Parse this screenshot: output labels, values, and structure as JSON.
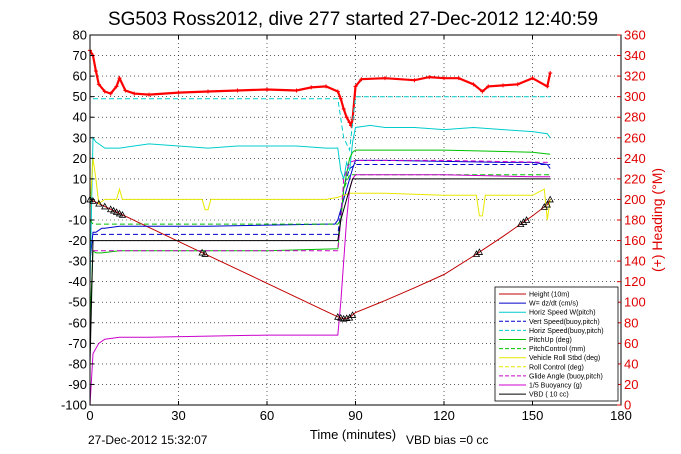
{
  "chart_data": {
    "type": "line",
    "title": "SG503 Ross2012, dive 277 started 27-Dec-2012 12:40:59",
    "xlabel": "Time (minutes)",
    "ylabel_right": "(+) Heading (°M)",
    "xlim": [
      0,
      180
    ],
    "ylim": [
      -100,
      80
    ],
    "ylim_right": [
      0,
      360
    ],
    "x_ticks": [
      "0",
      "30",
      "60",
      "90",
      "120",
      "150",
      "180"
    ],
    "y_ticks": [
      "-100",
      "-90",
      "-80",
      "-70",
      "-60",
      "-50",
      "-40",
      "-30",
      "-20",
      "-10",
      "0",
      "10",
      "20",
      "30",
      "40",
      "50",
      "60",
      "70",
      "80"
    ],
    "y_right_ticks": [
      "0",
      "20",
      "40",
      "60",
      "80",
      "100",
      "120",
      "140",
      "160",
      "180",
      "200",
      "220",
      "240",
      "260",
      "280",
      "300",
      "320",
      "340",
      "360"
    ],
    "grid": true,
    "legend_position": "bottom-right",
    "footer_left": "27-Dec-2012 15:32:07",
    "footer_right": "VBD bias =0 cc",
    "colors": {
      "heading": "#ff0000",
      "height": "#c00000",
      "w_dzdt": "#0000cc",
      "horiz_speed": "#00cccc",
      "pitch": "#00c000",
      "roll": "#e8e800",
      "glide_angle": "#cc00cc",
      "vbd": "#000000"
    },
    "legend": [
      {
        "label": "Height (10m)",
        "color": "#c00000",
        "dash": "solid"
      },
      {
        "label": "W= dz/dt (cm/s)",
        "color": "#0000cc",
        "dash": "solid"
      },
      {
        "label": "Horiz Speed W(pitch)",
        "color": "#00cccc",
        "dash": "solid"
      },
      {
        "label": "Vert Speed(buoy,pitch)",
        "color": "#0000cc",
        "dash": "dashed"
      },
      {
        "label": "Horiz Speed(buoy,pitch)",
        "color": "#00cccc",
        "dash": "dashed"
      },
      {
        "label": "PitchUp (deg)",
        "color": "#00c000",
        "dash": "solid"
      },
      {
        "label": "PitchControl (mm)",
        "color": "#00c000",
        "dash": "dashed"
      },
      {
        "label": "Vehicle Roll Stbd (deg)",
        "color": "#e8e800",
        "dash": "solid"
      },
      {
        "label": "Roll Control (deg)",
        "color": "#e8e800",
        "dash": "dashed"
      },
      {
        "label": "Glide Angle (buoy,pitch)",
        "color": "#cc00cc",
        "dash": "dashed"
      },
      {
        "label": "1/5 Buoyancy (g)",
        "color": "#cc00cc",
        "dash": "solid"
      },
      {
        "label": "VBD ( 10 cc)",
        "color": "#000000",
        "dash": "solid"
      }
    ],
    "series": [
      {
        "key": "heading",
        "axis": "right",
        "color": "#ff0000",
        "width": 2.2,
        "x": [
          0,
          1,
          2,
          3,
          5,
          7,
          9,
          10,
          12,
          15,
          20,
          30,
          40,
          50,
          60,
          70,
          75,
          80,
          84,
          85,
          86,
          87,
          88,
          88.5,
          89,
          90,
          92,
          100,
          110,
          115,
          120,
          125,
          130,
          133,
          135,
          140,
          145,
          150,
          155,
          156
        ],
        "y": [
          345,
          340,
          325,
          312,
          305,
          303,
          310,
          318,
          306,
          303,
          302,
          304,
          305,
          306,
          307,
          306,
          309,
          310,
          305,
          298,
          288,
          280,
          275,
          272,
          278,
          310,
          317,
          318,
          316,
          319,
          318,
          318,
          312,
          305,
          310,
          311,
          312,
          318,
          310,
          323
        ]
      },
      {
        "key": "height",
        "color": "#c00000",
        "width": 1,
        "x": [
          0,
          5,
          10,
          15,
          20,
          25,
          30,
          40,
          50,
          60,
          70,
          80,
          84,
          86,
          88,
          90,
          100,
          110,
          120,
          130,
          140,
          150,
          155,
          156
        ],
        "y": [
          0,
          -3.4,
          -6.8,
          -10.2,
          -13.6,
          -17,
          -20.4,
          -27.2,
          -34,
          -40.8,
          -47.6,
          -54.4,
          -57.1,
          -58,
          -57.5,
          -55,
          -49.2,
          -43,
          -36.5,
          -27.5,
          -18,
          -8,
          -2.5,
          0
        ]
      },
      {
        "key": "w_measured",
        "color": "#0000cc",
        "width": 1,
        "x": [
          0,
          1,
          2,
          3,
          4,
          5,
          10,
          20,
          40,
          60,
          80,
          83,
          84,
          85,
          86,
          87,
          88,
          89,
          90,
          92,
          95,
          100,
          120,
          140,
          150,
          155,
          156
        ],
        "y": [
          -30,
          -16,
          -16,
          -15,
          -14,
          -14,
          -13,
          -13,
          -13,
          -12.5,
          -12,
          -12,
          -10,
          -5,
          0,
          5,
          10,
          15,
          19,
          19,
          19,
          19,
          18.5,
          18,
          18,
          17,
          15
        ]
      },
      {
        "key": "w_model",
        "color": "#0000cc",
        "dash": "5,3",
        "width": 1,
        "x": [
          1,
          20,
          40,
          60,
          84,
          85,
          86,
          88,
          90,
          120,
          156
        ],
        "y": [
          -17,
          -17,
          -17,
          -17,
          -17,
          -6,
          6,
          15,
          17,
          17,
          17
        ]
      },
      {
        "key": "horiz_speed",
        "color": "#00cccc",
        "width": 1,
        "x": [
          0,
          1,
          2,
          3,
          5,
          10,
          20,
          30,
          40,
          50,
          60,
          70,
          80,
          84,
          85,
          86,
          87,
          88,
          89,
          90,
          95,
          100,
          110,
          120,
          130,
          140,
          150,
          155,
          156
        ],
        "y": [
          -40,
          30,
          28,
          27,
          25,
          25,
          27,
          26,
          25,
          26,
          26,
          26,
          25,
          25,
          14,
          10,
          18,
          14,
          28,
          35,
          36,
          35,
          35,
          34,
          35,
          34,
          33,
          32,
          30
        ]
      },
      {
        "key": "horiz_model",
        "color": "#00cccc",
        "dash": "5,3",
        "width": 1,
        "x": [
          1,
          10,
          40,
          70,
          84,
          86,
          88,
          90,
          120,
          156
        ],
        "y": [
          49,
          49,
          49,
          49,
          49,
          30,
          24,
          50,
          50,
          50
        ]
      },
      {
        "key": "pitch",
        "color": "#00c000",
        "width": 1,
        "x": [
          0,
          1,
          2,
          4,
          10,
          30,
          60,
          84,
          85,
          86,
          88,
          89,
          90,
          120,
          150,
          156
        ],
        "y": [
          -60,
          -25,
          -26,
          -26,
          -25,
          -25,
          -25,
          -24,
          -10,
          5,
          20,
          23,
          24,
          24,
          23,
          22
        ]
      },
      {
        "key": "pitch_control",
        "color": "#00c000",
        "dash": "5,3",
        "width": 1,
        "x": [
          0,
          1,
          3,
          10,
          40,
          84,
          85,
          86,
          88,
          90,
          120,
          156
        ],
        "y": [
          -10,
          -12,
          -12,
          -12,
          -12,
          -12,
          -10,
          5,
          12,
          12,
          12,
          12
        ]
      },
      {
        "key": "roll",
        "color": "#e8e800",
        "width": 1,
        "x": [
          0,
          1,
          2,
          3,
          5,
          9,
          10,
          11,
          12,
          20,
          38,
          39,
          40,
          41,
          50,
          80,
          84,
          86,
          88,
          90,
          100,
          120,
          131,
          132,
          133,
          134,
          150,
          154,
          155,
          156
        ],
        "y": [
          -5,
          20,
          10,
          -2,
          0,
          0,
          5,
          0,
          0,
          0,
          0,
          -5,
          -5,
          0,
          0,
          0,
          1,
          2,
          3,
          3,
          3,
          2,
          2,
          -8,
          -8,
          2,
          2,
          5,
          -10,
          0
        ]
      },
      {
        "key": "glide_angle",
        "color": "#cc00cc",
        "dash": "5,3",
        "width": 1,
        "x": [
          1,
          20,
          60,
          84,
          85,
          86,
          88,
          90,
          120,
          156
        ],
        "y": [
          -25,
          -25,
          -25,
          -25,
          -10,
          10,
          18,
          19,
          19,
          18
        ]
      },
      {
        "key": "buoyancy",
        "color": "#cc00cc",
        "width": 1,
        "x": [
          0,
          1,
          3,
          5,
          10,
          20,
          40,
          60,
          84,
          85,
          87,
          88,
          89,
          90,
          120,
          150,
          156
        ],
        "y": [
          -100,
          -75,
          -70,
          -68,
          -67,
          -67,
          -66.5,
          -66,
          -66,
          -50,
          -10,
          5,
          10,
          12,
          12,
          11,
          11
        ]
      },
      {
        "key": "vbd",
        "color": "#000000",
        "width": 1,
        "x": [
          0,
          1,
          3,
          5,
          10,
          84,
          85,
          87,
          88,
          89,
          90,
          120,
          156
        ],
        "y": [
          -80,
          -20,
          -20,
          -20,
          -20,
          -20,
          -10,
          0,
          5,
          10,
          10,
          10,
          10
        ]
      }
    ],
    "markers_x": [
      0,
      1,
      3,
      5,
      7,
      8,
      9,
      10,
      11,
      38,
      39,
      84,
      85,
      86,
      87,
      88,
      89,
      131,
      132,
      146,
      147,
      148,
      154,
      155,
      156
    ]
  }
}
